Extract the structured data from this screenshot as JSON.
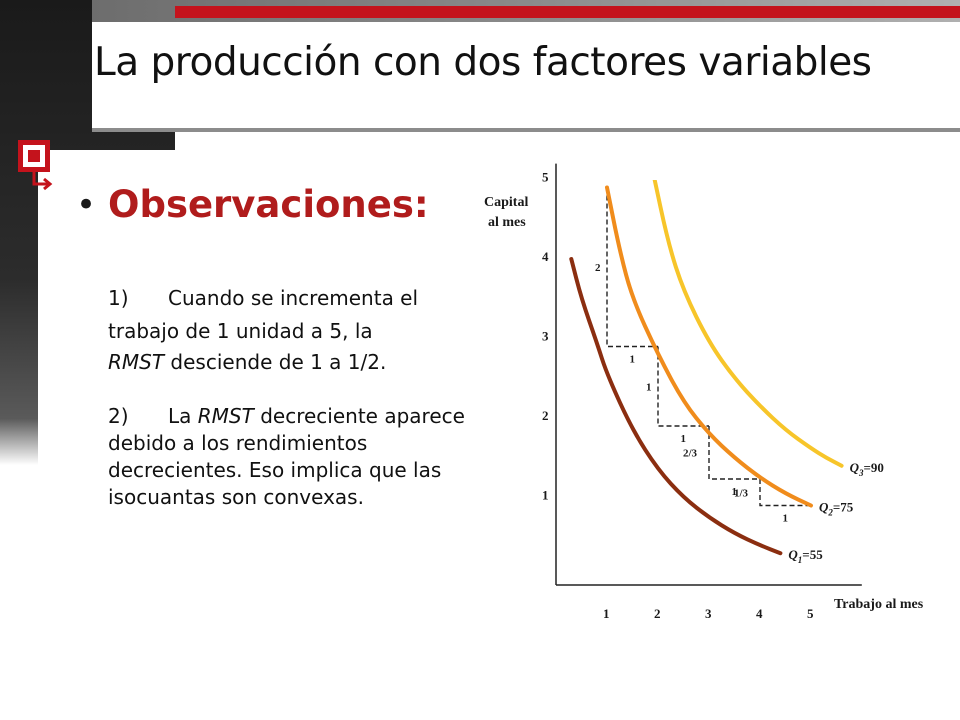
{
  "slide": {
    "title": "La producción con dos factores variables",
    "bullet_heading": "Observaciones:",
    "obs1": {
      "num": "1)",
      "line1": "Cuando se incrementa el",
      "line2_pre": "trabajo de 1 unidad a 5, la",
      "line3_italic": "RMST",
      "line3_rest": " desciende de 1 a 1/2."
    },
    "obs2": {
      "num": "2)",
      "pre_italic": "La ",
      "italic": "RMST",
      "rest": " decreciente aparece debido a los rendimientos decrecientes. Eso implica que las isocuantas son convexas."
    }
  },
  "colors": {
    "accent_red": "#c4131c",
    "heading_red": "#b01c1c",
    "q1": "#8b2e10",
    "q2": "#f08c1c",
    "q3": "#f7c52a"
  },
  "chart_data": {
    "type": "line",
    "ylabel_lines": [
      "Capital",
      "al mes"
    ],
    "xlabel": "Trabajo al mes",
    "x_ticks": [
      "1",
      "2",
      "3",
      "4",
      "5"
    ],
    "y_ticks": [
      "1",
      "2",
      "3",
      "4",
      "5"
    ],
    "xlim": [
      0,
      5.8
    ],
    "ylim": [
      0,
      5.2
    ],
    "series": [
      {
        "name_q": "Q",
        "name_sub": "1",
        "name_val": "=55",
        "color": "#8b2e10",
        "points": [
          [
            0.3,
            4.1
          ],
          [
            0.5,
            3.6
          ],
          [
            0.8,
            3.05
          ],
          [
            1.0,
            2.65
          ],
          [
            1.5,
            1.95
          ],
          [
            2.0,
            1.45
          ],
          [
            2.5,
            1.1
          ],
          [
            3.0,
            0.85
          ],
          [
            3.5,
            0.65
          ],
          [
            4.0,
            0.5
          ],
          [
            4.4,
            0.4
          ]
        ]
      },
      {
        "name_q": "Q",
        "name_sub": "2",
        "name_val": "=75",
        "color": "#f08c1c",
        "points": [
          [
            1.0,
            5.0
          ],
          [
            1.25,
            4.2
          ],
          [
            1.5,
            3.6
          ],
          [
            2.0,
            2.9
          ],
          [
            2.5,
            2.3
          ],
          [
            3.0,
            1.9
          ],
          [
            3.5,
            1.6
          ],
          [
            4.0,
            1.35
          ],
          [
            4.5,
            1.15
          ],
          [
            5.0,
            1.0
          ]
        ]
      },
      {
        "name_q": "Q",
        "name_sub": "3",
        "name_val": "=90",
        "color": "#f7c52a",
        "points": [
          [
            1.9,
            5.2
          ],
          [
            2.2,
            4.3
          ],
          [
            2.5,
            3.7
          ],
          [
            3.0,
            3.05
          ],
          [
            3.5,
            2.6
          ],
          [
            4.0,
            2.25
          ],
          [
            4.5,
            1.95
          ],
          [
            5.0,
            1.72
          ],
          [
            5.3,
            1.6
          ],
          [
            5.6,
            1.5
          ]
        ]
      }
    ],
    "rmst_steps": [
      {
        "x": 1,
        "y": 5,
        "dx": 1,
        "dy": -2,
        "dy_label": "2",
        "dx_label": "1"
      },
      {
        "x": 2,
        "y": 3,
        "dx": 1,
        "dy": -1,
        "dy_label": "1",
        "dx_label": "1"
      },
      {
        "x": 3,
        "y": 2,
        "dx": 1,
        "dy": -0.6667,
        "dy_label": "2/3",
        "dx_label": "1"
      },
      {
        "x": 4,
        "y": 1.3333,
        "dx": 1,
        "dy": -0.3333,
        "dy_label": "1/3",
        "dx_label": "1"
      }
    ]
  }
}
